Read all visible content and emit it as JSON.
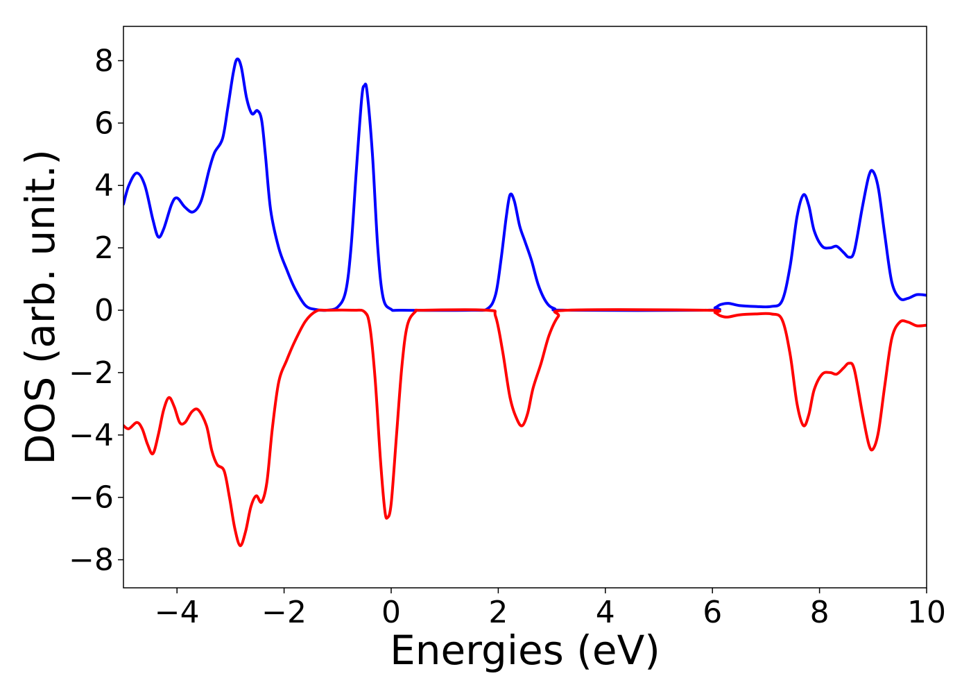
{
  "chart_data": {
    "type": "line",
    "title": "",
    "xlabel": "Energies (eV)",
    "ylabel": "DOS (arb. unit.)",
    "xlim": [
      -5,
      10
    ],
    "ylim": [
      -8.9,
      9.1
    ],
    "grid": false,
    "legend": "none",
    "xticks": [
      {
        "value": -4,
        "label": "−4"
      },
      {
        "value": -2,
        "label": "−2"
      },
      {
        "value": 0,
        "label": "0"
      },
      {
        "value": 2,
        "label": "2"
      },
      {
        "value": 4,
        "label": "4"
      },
      {
        "value": 6,
        "label": "6"
      },
      {
        "value": 8,
        "label": "8"
      },
      {
        "value": 10,
        "label": "10"
      }
    ],
    "yticks": [
      {
        "value": -8,
        "label": "−8"
      },
      {
        "value": -6,
        "label": "−6"
      },
      {
        "value": -4,
        "label": "−4"
      },
      {
        "value": -2,
        "label": "−2"
      },
      {
        "value": 0,
        "label": "0"
      },
      {
        "value": 2,
        "label": "2"
      },
      {
        "value": 4,
        "label": "4"
      },
      {
        "value": 6,
        "label": "6"
      },
      {
        "value": 8,
        "label": "8"
      }
    ],
    "series": [
      {
        "color": "#0000ff",
        "points": [
          [
            -5.0,
            3.4
          ],
          [
            -4.9,
            4.0
          ],
          [
            -4.75,
            4.4
          ],
          [
            -4.6,
            4.0
          ],
          [
            -4.45,
            2.9
          ],
          [
            -4.35,
            2.35
          ],
          [
            -4.25,
            2.6
          ],
          [
            -4.1,
            3.4
          ],
          [
            -4.0,
            3.6
          ],
          [
            -3.85,
            3.3
          ],
          [
            -3.7,
            3.15
          ],
          [
            -3.55,
            3.5
          ],
          [
            -3.4,
            4.5
          ],
          [
            -3.3,
            5.05
          ],
          [
            -3.15,
            5.5
          ],
          [
            -3.05,
            6.5
          ],
          [
            -2.95,
            7.6
          ],
          [
            -2.88,
            8.05
          ],
          [
            -2.8,
            7.8
          ],
          [
            -2.7,
            6.8
          ],
          [
            -2.6,
            6.3
          ],
          [
            -2.5,
            6.4
          ],
          [
            -2.42,
            6.1
          ],
          [
            -2.35,
            5.0
          ],
          [
            -2.25,
            3.2
          ],
          [
            -2.1,
            2.0
          ],
          [
            -1.95,
            1.3
          ],
          [
            -1.8,
            0.7
          ],
          [
            -1.6,
            0.15
          ],
          [
            -1.4,
            0.02
          ],
          [
            -1.2,
            0.0
          ],
          [
            -1.0,
            0.1
          ],
          [
            -0.85,
            0.6
          ],
          [
            -0.75,
            2.0
          ],
          [
            -0.65,
            4.5
          ],
          [
            -0.55,
            6.8
          ],
          [
            -0.5,
            7.2
          ],
          [
            -0.45,
            7.0
          ],
          [
            -0.35,
            5.0
          ],
          [
            -0.25,
            2.0
          ],
          [
            -0.15,
            0.4
          ],
          [
            0.0,
            0.03
          ],
          [
            0.2,
            0.0
          ],
          [
            1.5,
            0.0
          ],
          [
            1.8,
            0.05
          ],
          [
            1.95,
            0.5
          ],
          [
            2.05,
            1.6
          ],
          [
            2.15,
            3.0
          ],
          [
            2.22,
            3.7
          ],
          [
            2.3,
            3.5
          ],
          [
            2.4,
            2.7
          ],
          [
            2.5,
            2.2
          ],
          [
            2.62,
            1.6
          ],
          [
            2.75,
            0.8
          ],
          [
            2.9,
            0.25
          ],
          [
            3.05,
            0.05
          ],
          [
            3.3,
            0.0
          ],
          [
            5.9,
            0.0
          ],
          [
            6.05,
            0.08
          ],
          [
            6.15,
            0.18
          ],
          [
            6.3,
            0.22
          ],
          [
            6.5,
            0.15
          ],
          [
            6.8,
            0.12
          ],
          [
            7.1,
            0.12
          ],
          [
            7.3,
            0.3
          ],
          [
            7.45,
            1.4
          ],
          [
            7.58,
            3.0
          ],
          [
            7.7,
            3.7
          ],
          [
            7.8,
            3.35
          ],
          [
            7.9,
            2.55
          ],
          [
            8.05,
            2.05
          ],
          [
            8.2,
            2.0
          ],
          [
            8.32,
            2.05
          ],
          [
            8.45,
            1.85
          ],
          [
            8.55,
            1.7
          ],
          [
            8.65,
            1.9
          ],
          [
            8.8,
            3.3
          ],
          [
            8.92,
            4.3
          ],
          [
            9.0,
            4.45
          ],
          [
            9.1,
            3.9
          ],
          [
            9.22,
            2.4
          ],
          [
            9.35,
            0.9
          ],
          [
            9.5,
            0.38
          ],
          [
            9.65,
            0.38
          ],
          [
            9.82,
            0.5
          ],
          [
            10.0,
            0.48
          ]
        ]
      },
      {
        "color": "#ff0000",
        "points": [
          [
            -5.0,
            -3.7
          ],
          [
            -4.9,
            -3.8
          ],
          [
            -4.75,
            -3.6
          ],
          [
            -4.65,
            -3.8
          ],
          [
            -4.55,
            -4.3
          ],
          [
            -4.45,
            -4.6
          ],
          [
            -4.35,
            -4.0
          ],
          [
            -4.25,
            -3.2
          ],
          [
            -4.15,
            -2.8
          ],
          [
            -4.05,
            -3.1
          ],
          [
            -3.95,
            -3.6
          ],
          [
            -3.85,
            -3.6
          ],
          [
            -3.72,
            -3.25
          ],
          [
            -3.6,
            -3.2
          ],
          [
            -3.45,
            -3.7
          ],
          [
            -3.35,
            -4.5
          ],
          [
            -3.25,
            -4.95
          ],
          [
            -3.12,
            -5.15
          ],
          [
            -3.02,
            -6.0
          ],
          [
            -2.92,
            -7.0
          ],
          [
            -2.82,
            -7.55
          ],
          [
            -2.72,
            -7.1
          ],
          [
            -2.62,
            -6.3
          ],
          [
            -2.52,
            -5.95
          ],
          [
            -2.42,
            -6.15
          ],
          [
            -2.32,
            -5.5
          ],
          [
            -2.22,
            -3.8
          ],
          [
            -2.1,
            -2.3
          ],
          [
            -1.95,
            -1.6
          ],
          [
            -1.8,
            -1.0
          ],
          [
            -1.6,
            -0.35
          ],
          [
            -1.4,
            -0.03
          ],
          [
            -1.2,
            0.0
          ],
          [
            -0.7,
            0.0
          ],
          [
            -0.5,
            -0.05
          ],
          [
            -0.4,
            -0.5
          ],
          [
            -0.3,
            -2.2
          ],
          [
            -0.2,
            -4.8
          ],
          [
            -0.12,
            -6.4
          ],
          [
            -0.07,
            -6.65
          ],
          [
            0.0,
            -6.2
          ],
          [
            0.1,
            -4.0
          ],
          [
            0.2,
            -1.8
          ],
          [
            0.3,
            -0.5
          ],
          [
            0.45,
            -0.05
          ],
          [
            0.6,
            0.0
          ],
          [
            1.8,
            0.0
          ],
          [
            1.95,
            -0.2
          ],
          [
            2.08,
            -1.3
          ],
          [
            2.22,
            -2.8
          ],
          [
            2.35,
            -3.5
          ],
          [
            2.45,
            -3.7
          ],
          [
            2.55,
            -3.3
          ],
          [
            2.65,
            -2.5
          ],
          [
            2.8,
            -1.7
          ],
          [
            2.95,
            -0.8
          ],
          [
            3.12,
            -0.2
          ],
          [
            3.3,
            0.0
          ],
          [
            5.9,
            0.0
          ],
          [
            6.05,
            -0.08
          ],
          [
            6.15,
            -0.18
          ],
          [
            6.28,
            -0.22
          ],
          [
            6.5,
            -0.15
          ],
          [
            6.8,
            -0.12
          ],
          [
            7.1,
            -0.12
          ],
          [
            7.3,
            -0.3
          ],
          [
            7.45,
            -1.4
          ],
          [
            7.58,
            -3.0
          ],
          [
            7.7,
            -3.7
          ],
          [
            7.8,
            -3.35
          ],
          [
            7.9,
            -2.55
          ],
          [
            8.05,
            -2.05
          ],
          [
            8.2,
            -2.0
          ],
          [
            8.32,
            -2.05
          ],
          [
            8.45,
            -1.85
          ],
          [
            8.55,
            -1.7
          ],
          [
            8.65,
            -1.9
          ],
          [
            8.8,
            -3.3
          ],
          [
            8.92,
            -4.3
          ],
          [
            9.0,
            -4.45
          ],
          [
            9.1,
            -3.9
          ],
          [
            9.22,
            -2.4
          ],
          [
            9.35,
            -0.9
          ],
          [
            9.5,
            -0.38
          ],
          [
            9.65,
            -0.38
          ],
          [
            9.82,
            -0.5
          ],
          [
            10.0,
            -0.48
          ]
        ]
      }
    ]
  }
}
